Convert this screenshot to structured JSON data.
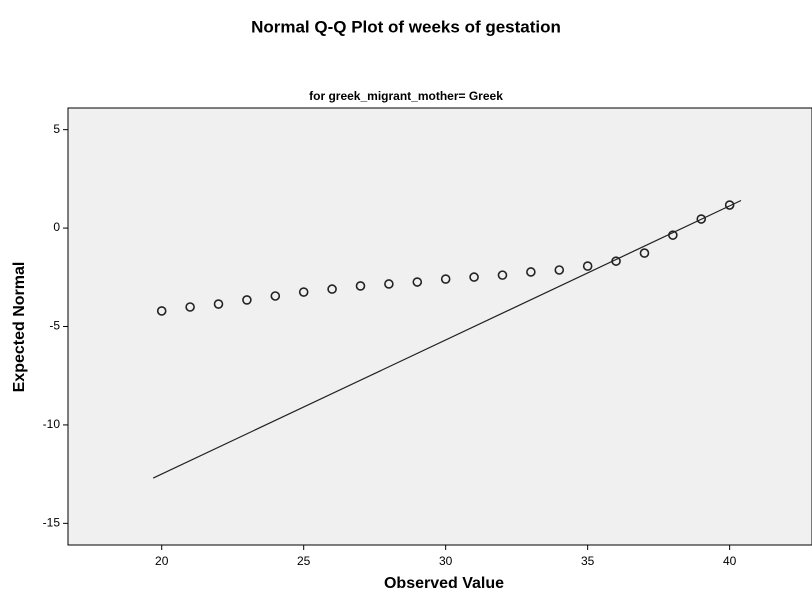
{
  "chart_data": {
    "type": "scatter",
    "title": "Normal Q-Q Plot of weeks of gestation",
    "subtitle": "for greek_migrant_mother= Greek",
    "xlabel": "Observed Value",
    "ylabel": "Expected Normal",
    "x": [
      20,
      21,
      22,
      23,
      24,
      25,
      26,
      27,
      28,
      29,
      30,
      31,
      32,
      33,
      34,
      35,
      36,
      37,
      38,
      39,
      40
    ],
    "values": [
      -4.21,
      -4.01,
      -3.86,
      -3.65,
      -3.45,
      -3.25,
      -3.1,
      -2.94,
      -2.84,
      -2.74,
      -2.59,
      -2.49,
      -2.39,
      -2.23,
      -2.13,
      -1.93,
      -1.68,
      -1.27,
      -0.36,
      0.46,
      1.17
    ],
    "color": "#222222",
    "reference_line": {
      "x": [
        19.7,
        40.4
      ],
      "values": [
        -12.7,
        1.4
      ],
      "color": "#222222"
    },
    "xlim": [
      16.7,
      42.9
    ],
    "ylim": [
      -16.1,
      6.1
    ],
    "xticks": [
      20,
      25,
      30,
      35,
      40
    ],
    "yticks": [
      5,
      0,
      -5,
      -10,
      -15
    ],
    "background": "#f0f0f0"
  }
}
